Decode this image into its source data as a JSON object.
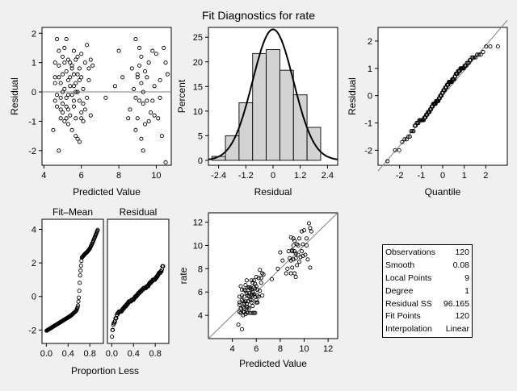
{
  "title": "Fit Diagnostics for rate",
  "chart_data": [
    {
      "type": "scatter",
      "panel": "residual-by-predicted",
      "xlabel": "Predicted Value",
      "ylabel": "Residual",
      "xlim": [
        3.9,
        10.8
      ],
      "ylim": [
        -2.5,
        2.2
      ],
      "xticks": [
        4,
        6,
        8,
        10
      ],
      "yticks": [
        -2,
        -1,
        0,
        1,
        2
      ],
      "reference_line_y": 0,
      "points": [
        [
          4.5,
          -1.3
        ],
        [
          4.6,
          1.0
        ],
        [
          4.6,
          0.5
        ],
        [
          4.6,
          -0.3
        ],
        [
          4.7,
          1.8
        ],
        [
          4.7,
          -0.1
        ],
        [
          4.8,
          -2.0
        ],
        [
          4.8,
          0.9
        ],
        [
          4.9,
          -0.9
        ],
        [
          4.9,
          0.3
        ],
        [
          5.0,
          1.2
        ],
        [
          5.0,
          -0.4
        ],
        [
          5.0,
          0.6
        ],
        [
          5.1,
          1.5
        ],
        [
          5.1,
          -1.0
        ],
        [
          5.1,
          0.1
        ],
        [
          5.2,
          1.8
        ],
        [
          5.2,
          -0.2
        ],
        [
          5.2,
          0.7
        ],
        [
          5.3,
          -1.1
        ],
        [
          5.3,
          0.4
        ],
        [
          5.3,
          -0.6
        ],
        [
          5.4,
          1.0
        ],
        [
          5.4,
          0.2
        ],
        [
          5.4,
          -0.8
        ],
        [
          5.5,
          0.9
        ],
        [
          5.5,
          -0.1
        ],
        [
          5.5,
          -1.3
        ],
        [
          5.6,
          0.6
        ],
        [
          5.6,
          1.4
        ],
        [
          5.6,
          -0.5
        ],
        [
          5.7,
          -0.9
        ],
        [
          5.7,
          1.1
        ],
        [
          5.7,
          0.3
        ],
        [
          5.8,
          -1.6
        ],
        [
          5.8,
          0.0
        ],
        [
          5.8,
          1.2
        ],
        [
          5.9,
          -0.3
        ],
        [
          5.9,
          0.8
        ],
        [
          5.9,
          -1.7
        ],
        [
          6.0,
          1.3
        ],
        [
          6.0,
          -0.7
        ],
        [
          6.0,
          0.5
        ],
        [
          6.1,
          0.1
        ],
        [
          6.1,
          -0.4
        ],
        [
          6.2,
          1.0
        ],
        [
          6.3,
          -0.2
        ],
        [
          6.3,
          1.6
        ],
        [
          6.4,
          0.4
        ],
        [
          6.5,
          1.1
        ],
        [
          4.7,
          -0.5
        ],
        [
          4.8,
          1.4
        ],
        [
          4.9,
          -0.2
        ],
        [
          5.0,
          0.0
        ],
        [
          5.2,
          -0.5
        ],
        [
          5.3,
          1.1
        ],
        [
          5.4,
          0.5
        ],
        [
          5.6,
          0.2
        ],
        [
          5.7,
          -1.5
        ],
        [
          5.9,
          0.4
        ],
        [
          6.2,
          -0.6
        ],
        [
          6.5,
          -0.8
        ],
        [
          7.3,
          -0.2
        ],
        [
          7.8,
          0.2
        ],
        [
          8.0,
          1.4
        ],
        [
          8.2,
          0.5
        ],
        [
          8.6,
          -0.6
        ],
        [
          8.8,
          0.1
        ],
        [
          8.9,
          1.8
        ],
        [
          8.9,
          -1.3
        ],
        [
          9.0,
          -0.9
        ],
        [
          9.0,
          0.6
        ],
        [
          9.1,
          1.5
        ],
        [
          9.1,
          -0.3
        ],
        [
          9.1,
          0.9
        ],
        [
          9.2,
          -1.6
        ],
        [
          9.2,
          0.3
        ],
        [
          9.2,
          1.2
        ],
        [
          9.3,
          -0.4
        ],
        [
          9.3,
          -2.0
        ],
        [
          9.3,
          0.0
        ],
        [
          9.4,
          0.7
        ],
        [
          9.4,
          -1.1
        ],
        [
          9.5,
          -0.3
        ],
        [
          9.5,
          0.5
        ],
        [
          9.6,
          1.0
        ],
        [
          9.7,
          -0.7
        ],
        [
          9.8,
          -0.3
        ],
        [
          9.8,
          1.4
        ],
        [
          9.9,
          0.2
        ],
        [
          10.0,
          1.3
        ],
        [
          10.1,
          -0.9
        ],
        [
          10.2,
          0.4
        ],
        [
          10.3,
          -1.5
        ],
        [
          10.4,
          1.5
        ],
        [
          10.5,
          -2.4
        ],
        [
          10.5,
          1.0
        ],
        [
          10.6,
          0.6
        ],
        [
          8.9,
          -0.2
        ],
        [
          9.0,
          0.5
        ],
        [
          8.7,
          0.8
        ],
        [
          8.5,
          -0.9
        ],
        [
          9.6,
          -1.0
        ],
        [
          10.2,
          -0.2
        ],
        [
          9.9,
          -0.8
        ],
        [
          4.9,
          -0.6
        ],
        [
          5.5,
          0.8
        ],
        [
          6.0,
          -0.9
        ],
        [
          5.1,
          1.0
        ],
        [
          4.8,
          0.5
        ],
        [
          5.3,
          -0.1
        ],
        [
          5.6,
          -0.3
        ],
        [
          5.8,
          0.6
        ],
        [
          6.1,
          -1.0
        ],
        [
          5.2,
          -0.9
        ],
        [
          4.6,
          0.3
        ],
        [
          5.0,
          -0.7
        ],
        [
          5.7,
          0.0
        ],
        [
          6.4,
          0.8
        ],
        [
          6.6,
          0.9
        ]
      ]
    },
    {
      "type": "bar",
      "panel": "residual-histogram",
      "xlabel": "Residual",
      "ylabel": "Percent",
      "xlim": [
        -2.85,
        2.85
      ],
      "ylim": [
        -1,
        27
      ],
      "xticks": [
        -2.4,
        -1.2,
        0,
        1.2,
        2.4
      ],
      "yticks": [
        0,
        5,
        10,
        15,
        20,
        25
      ],
      "xtick_labels": [
        "-2.4",
        "-1.2",
        "0",
        "1.2",
        "2.4"
      ],
      "bin_edges": [
        -2.7,
        -2.1,
        -1.5,
        -0.9,
        -0.3,
        0.3,
        0.9,
        1.5,
        2.1
      ],
      "values": [
        0.8,
        5.0,
        11.7,
        21.7,
        22.5,
        18.3,
        13.3,
        6.7
      ],
      "normal_curve": {
        "mean": 0.0,
        "sd": 0.9,
        "peak_percent": 26.6
      }
    },
    {
      "type": "scatter",
      "panel": "residual-qq",
      "xlabel": "Quantile",
      "ylabel": "Residual",
      "xlim": [
        -3.0,
        3.0
      ],
      "ylim": [
        -2.55,
        2.5
      ],
      "xticks": [
        -2,
        -1,
        0,
        1,
        2
      ],
      "yticks": [
        -2,
        -1,
        0,
        1,
        2
      ],
      "reference_line": {
        "slope": 0.92,
        "intercept": 0.0
      },
      "points_from": "residual-by-predicted"
    },
    {
      "type": "scatter",
      "panel": "rf-spread-fit-mean",
      "title": "Fit–Mean",
      "xlim": [
        -0.08,
        1.05
      ],
      "ylim": [
        -2.8,
        4.6
      ],
      "xticks": [
        0.0,
        0.4,
        0.8
      ],
      "xtick_labels": [
        "0.0",
        "0.4",
        "0.8"
      ],
      "yticks": [
        -2,
        0,
        2,
        4
      ],
      "curve": [
        [
          0.0,
          -2.05
        ],
        [
          0.05,
          -1.95
        ],
        [
          0.1,
          -1.85
        ],
        [
          0.15,
          -1.75
        ],
        [
          0.2,
          -1.65
        ],
        [
          0.25,
          -1.55
        ],
        [
          0.3,
          -1.45
        ],
        [
          0.35,
          -1.35
        ],
        [
          0.4,
          -1.25
        ],
        [
          0.45,
          -1.15
        ],
        [
          0.5,
          -1.0
        ],
        [
          0.55,
          -0.85
        ],
        [
          0.58,
          -0.6
        ],
        [
          0.6,
          0.0
        ],
        [
          0.62,
          1.2
        ],
        [
          0.65,
          2.3
        ],
        [
          0.7,
          2.5
        ],
        [
          0.75,
          2.65
        ],
        [
          0.8,
          2.85
        ],
        [
          0.85,
          3.2
        ],
        [
          0.9,
          3.6
        ],
        [
          0.95,
          4.0
        ]
      ]
    },
    {
      "type": "scatter",
      "panel": "rf-spread-residual",
      "title": "Residual",
      "xlim": [
        -0.08,
        1.05
      ],
      "ylim": [
        -2.8,
        4.6
      ],
      "xticks": [
        0.0,
        0.4,
        0.8
      ],
      "xtick_labels": [
        "0.0",
        "0.4",
        "0.8"
      ],
      "xlabel_shared": "Proportion Less",
      "points_from": "residual-by-predicted"
    },
    {
      "type": "scatter",
      "panel": "observed-by-predicted",
      "xlabel": "Predicted Value",
      "ylabel": "rate",
      "xlim": [
        2.0,
        12.8
      ],
      "ylim": [
        2.0,
        12.8
      ],
      "xticks": [
        4,
        6,
        8,
        10,
        12
      ],
      "yticks": [
        4,
        6,
        8,
        10,
        12
      ],
      "reference_line": "y = x",
      "points_from": "residual-by-predicted"
    }
  ],
  "stats": [
    {
      "label": "Observations",
      "value": "120"
    },
    {
      "label": "Smooth",
      "value": "0.08"
    },
    {
      "label": "Local Points",
      "value": "9"
    },
    {
      "label": "Degree",
      "value": "1"
    },
    {
      "label": "Residual SS",
      "value": "96.165"
    },
    {
      "label": "Fit Points",
      "value": "120"
    },
    {
      "label": "Interpolation",
      "value": "Linear"
    }
  ]
}
